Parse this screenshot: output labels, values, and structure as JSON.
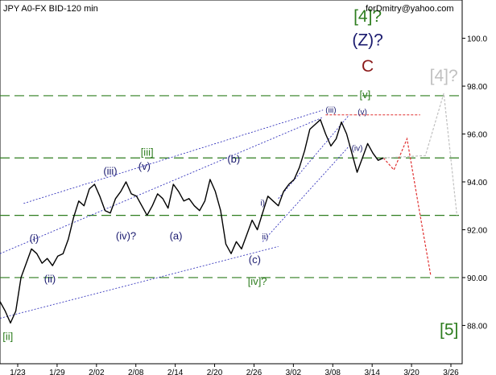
{
  "header": {
    "title": "JPY A0-FX BID-120 min",
    "contact": "forDmitry@yahoo.com"
  },
  "colors": {
    "green": "#2e7d1f",
    "navy": "#1a1a6e",
    "darkred": "#8b1a1a",
    "projection_red": "#e03030",
    "projection_grey": "#c0c0c0",
    "channel_blue": "#1f1fb5",
    "price": "#000000"
  },
  "chart_data": {
    "type": "line",
    "title": "JPY A0-FX BID-120 min",
    "xlabel": "",
    "ylabel": "",
    "ylim": [
      86.4,
      101.6
    ],
    "x_ticks": [
      "1/23",
      "1/29",
      "2/02",
      "2/08",
      "2/14",
      "2/20",
      "2/26",
      "3/02",
      "3/08",
      "3/14",
      "3/20",
      "3/26"
    ],
    "y_ticks": [
      "88.00",
      "90.00",
      "92.00",
      "94.00",
      "96.00",
      "98.00",
      "100.0"
    ],
    "grid": true,
    "horizontal_levels": [
      97.6,
      95.0,
      92.6,
      90.0
    ],
    "price_series": [
      [
        0,
        89.0
      ],
      [
        2,
        88.6
      ],
      [
        4,
        88.1
      ],
      [
        6,
        88.6
      ],
      [
        8,
        90.0
      ],
      [
        10,
        90.6
      ],
      [
        12,
        91.2
      ],
      [
        14,
        91.0
      ],
      [
        16,
        90.6
      ],
      [
        18,
        90.8
      ],
      [
        20,
        90.5
      ],
      [
        22,
        90.9
      ],
      [
        24,
        91.0
      ],
      [
        26,
        91.6
      ],
      [
        28,
        92.5
      ],
      [
        30,
        93.2
      ],
      [
        32,
        93.0
      ],
      [
        34,
        93.7
      ],
      [
        36,
        93.9
      ],
      [
        38,
        93.4
      ],
      [
        40,
        92.8
      ],
      [
        42,
        92.7
      ],
      [
        44,
        93.3
      ],
      [
        46,
        93.6
      ],
      [
        48,
        94.0
      ],
      [
        50,
        93.5
      ],
      [
        52,
        93.4
      ],
      [
        54,
        93.0
      ],
      [
        56,
        92.6
      ],
      [
        58,
        93.0
      ],
      [
        60,
        93.5
      ],
      [
        62,
        93.3
      ],
      [
        64,
        92.9
      ],
      [
        66,
        93.9
      ],
      [
        68,
        93.6
      ],
      [
        70,
        93.2
      ],
      [
        72,
        93.3
      ],
      [
        74,
        93.0
      ],
      [
        76,
        92.8
      ],
      [
        78,
        93.2
      ],
      [
        80,
        94.1
      ],
      [
        82,
        93.6
      ],
      [
        84,
        92.8
      ],
      [
        86,
        91.4
      ],
      [
        88,
        91.0
      ],
      [
        90,
        91.5
      ],
      [
        92,
        91.2
      ],
      [
        94,
        91.8
      ],
      [
        96,
        92.4
      ],
      [
        98,
        92.0
      ],
      [
        100,
        92.7
      ],
      [
        102,
        93.4
      ],
      [
        104,
        93.2
      ],
      [
        106,
        93.0
      ],
      [
        108,
        93.6
      ],
      [
        110,
        93.9
      ],
      [
        112,
        94.1
      ],
      [
        114,
        94.6
      ],
      [
        116,
        95.3
      ],
      [
        118,
        96.2
      ],
      [
        120,
        96.4
      ],
      [
        122,
        96.6
      ],
      [
        124,
        96.0
      ],
      [
        126,
        95.5
      ],
      [
        128,
        95.8
      ],
      [
        130,
        96.5
      ],
      [
        132,
        96.0
      ],
      [
        134,
        95.2
      ],
      [
        136,
        94.4
      ],
      [
        138,
        95.0
      ],
      [
        140,
        95.6
      ],
      [
        142,
        95.2
      ],
      [
        144,
        94.9
      ],
      [
        146,
        95.0
      ]
    ],
    "projection_red": [
      [
        146,
        95.0
      ],
      [
        150,
        94.5
      ],
      [
        155,
        95.8
      ],
      [
        160,
        92.6
      ],
      [
        164,
        90.1
      ]
    ],
    "projection_grey": [
      [
        146,
        95.0
      ],
      [
        162,
        95.1
      ],
      [
        169,
        97.7
      ],
      [
        174,
        92.6
      ]
    ],
    "wave_labels": [
      {
        "text": "[4]?",
        "x": 140,
        "y": 100.7,
        "color": "green",
        "size": "big"
      },
      {
        "text": "(Z)?",
        "x": 140,
        "y": 99.7,
        "color": "navy",
        "size": "big"
      },
      {
        "text": "C",
        "x": 140,
        "y": 98.6,
        "color": "darkred",
        "size": "big"
      },
      {
        "text": "[4]?",
        "x": 169,
        "y": 98.2,
        "color": "projection_grey",
        "size": "big"
      },
      {
        "text": "[v]",
        "x": 139,
        "y": 97.5,
        "color": "green",
        "size": "wave"
      },
      {
        "text": "(iii)",
        "x": 126,
        "y": 96.9,
        "color": "navy",
        "size": "small"
      },
      {
        "text": "(v)",
        "x": 138,
        "y": 96.8,
        "color": "navy",
        "size": "small"
      },
      {
        "text": "(iv)",
        "x": 136,
        "y": 95.3,
        "color": "navy",
        "size": "small"
      },
      {
        "text": "[iii]",
        "x": 56,
        "y": 95.1,
        "color": "green",
        "size": "wave"
      },
      {
        "text": "(v)",
        "x": 55,
        "y": 94.5,
        "color": "navy",
        "size": "wave"
      },
      {
        "text": "(iii)",
        "x": 42,
        "y": 94.3,
        "color": "navy",
        "size": "wave"
      },
      {
        "text": "(b)",
        "x": 89,
        "y": 94.8,
        "color": "navy",
        "size": "wave"
      },
      {
        "text": "(i)",
        "x": 13,
        "y": 91.5,
        "color": "navy",
        "size": "wave"
      },
      {
        "text": "(ii)",
        "x": 19,
        "y": 89.8,
        "color": "navy",
        "size": "wave"
      },
      {
        "text": "(iv)?",
        "x": 48,
        "y": 91.6,
        "color": "navy",
        "size": "wave"
      },
      {
        "text": "(a)",
        "x": 67,
        "y": 91.6,
        "color": "navy",
        "size": "wave"
      },
      {
        "text": "(c)",
        "x": 97,
        "y": 90.6,
        "color": "navy",
        "size": "wave"
      },
      {
        "text": "[iv]?",
        "x": 98,
        "y": 89.7,
        "color": "green",
        "size": "wave"
      },
      {
        "text": "i)",
        "x": 100,
        "y": 93.0,
        "color": "navy",
        "size": "small"
      },
      {
        "text": "ii)",
        "x": 101,
        "y": 91.6,
        "color": "navy",
        "size": "small"
      },
      {
        "text": "[ii]",
        "x": 3,
        "y": 87.4,
        "color": "green",
        "size": "wave"
      },
      {
        "text": "[5]",
        "x": 171,
        "y": 87.6,
        "color": "green",
        "size": "big"
      }
    ]
  }
}
